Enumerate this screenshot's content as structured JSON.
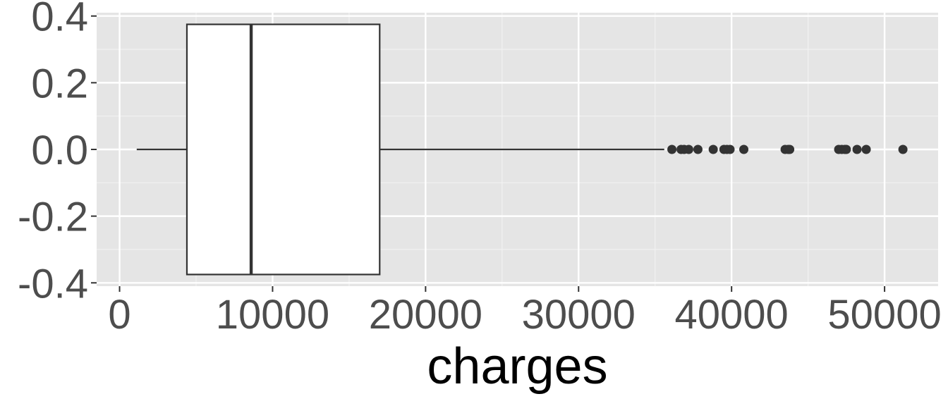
{
  "chart_data": {
    "type": "boxplot",
    "title": "",
    "xlabel": "charges",
    "ylabel": "",
    "xlim": [
      -1500,
      53500
    ],
    "ylim": [
      -0.41,
      0.41
    ],
    "x_ticks": [
      0,
      10000,
      20000,
      30000,
      40000,
      50000
    ],
    "x_tick_labels": [
      "0",
      "10000",
      "20000",
      "30000",
      "40000",
      "50000"
    ],
    "y_ticks": [
      0.4,
      0.2,
      0.0,
      -0.2,
      -0.4
    ],
    "y_tick_labels": [
      "0.4",
      "0.2",
      "0.0",
      "-0.2",
      "-0.4"
    ],
    "box": {
      "y_center": 0.0,
      "y_half_width": 0.375,
      "whisker_low": 1120,
      "q1": 4400,
      "median": 8600,
      "q3": 17000,
      "whisker_high": 35600
    },
    "outliers": [
      36100,
      36700,
      36900,
      37200,
      37800,
      38800,
      39500,
      39700,
      39900,
      40800,
      43500,
      43700,
      43800,
      47000,
      47200,
      47400,
      47500,
      48200,
      48800,
      51200
    ],
    "grid": true,
    "legend": "none",
    "colors": {
      "panel": "#e5e5e5",
      "grid_major": "#ffffff",
      "grid_minor": "#f2f2f2",
      "box_fill": "#ffffff",
      "box_stroke": "#333333",
      "outlier": "#333333"
    }
  }
}
